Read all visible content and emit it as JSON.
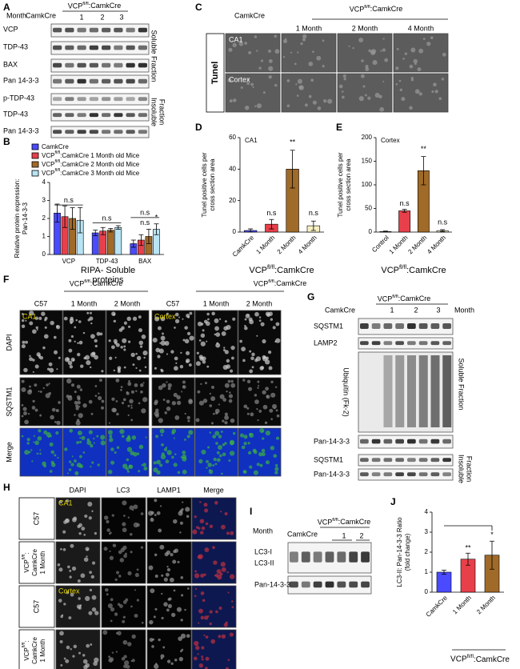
{
  "panel_labels": [
    "A",
    "B",
    "C",
    "D",
    "E",
    "F",
    "G",
    "H",
    "I",
    "J"
  ],
  "panel_a": {
    "month": "Month",
    "control": "CamkCre",
    "group": "VCPfl/fl:CamkCre",
    "months": [
      "1",
      "2",
      "3"
    ],
    "soluble_rows": [
      "VCP",
      "TDP-43",
      "BAX",
      "Pan 14-3-3"
    ],
    "insoluble_rows": [
      "p-TDP-43",
      "TDP-43",
      "Pan 14-3-3"
    ],
    "soluble": "Soluble Fraction",
    "insoluble": [
      "Insoluble",
      "Fraction"
    ]
  },
  "panel_c": {
    "control": "CamkCre",
    "group": "VCPfl/fl:CamkCre",
    "columns": [
      "1 Month",
      "2 Month",
      "4 Month"
    ],
    "rows": [
      "CA1",
      "Cortex"
    ],
    "side": "Tunel"
  },
  "panel_f": {
    "group": "VCPfl/fl:CamkCre",
    "columns": [
      "C57",
      "1 Month",
      "2 Month"
    ],
    "rows": [
      "DAPI",
      "SQSTM1",
      "Merge"
    ],
    "regions": [
      "CA1",
      "Cortex"
    ]
  },
  "panel_g": {
    "control": "CamkCre",
    "group": "VCPfl/fl:CamkCre",
    "months": [
      "1",
      "2",
      "3"
    ],
    "month": "Month",
    "rows": [
      "SQSTM1",
      "LAMP2",
      "Ubiquitin (Fk-2)",
      "Pan-14-3-3",
      "SQSTM1",
      "Pan-14-3-3"
    ],
    "soluble": "Soluble Fraction",
    "insoluble": [
      "Insoluble",
      "Fraction"
    ]
  },
  "panel_h": {
    "columns": [
      "DAPI",
      "LC3",
      "LAMP1",
      "Merge"
    ],
    "control": "C57",
    "mutant": [
      "VCPfl/fl:",
      "CamkCre",
      "1 Month"
    ],
    "regions": [
      "CA1",
      "Cortex"
    ]
  },
  "panel_i": {
    "month": "Month",
    "control": "CamkCre",
    "group": "VCPfl/fl:CamkCre",
    "months": [
      "1",
      "2"
    ],
    "rows": [
      "LC3-I",
      "LC3-II",
      "Pan-14-3-3"
    ]
  },
  "chart_data": [
    {
      "type": "bar",
      "categories": [
        "VCP",
        "TDP-43",
        "BAX"
      ],
      "series": [
        {
          "name": "CamkCre",
          "color": "#4a4aff",
          "values": [
            2.3,
            1.2,
            0.6
          ],
          "errors": [
            0.5,
            0.15,
            0.2
          ]
        },
        {
          "name": "VCPfl/fl:CamkCre 1 Month old Mice",
          "color": "#e8404a",
          "values": [
            2.1,
            1.3,
            0.8
          ],
          "errors": [
            0.6,
            0.2,
            0.3
          ]
        },
        {
          "name": "VCPfl/fl:CamkCre 2 Month old Mice",
          "color": "#a06a28",
          "values": [
            2.0,
            1.35,
            1.0
          ],
          "errors": [
            0.6,
            0.1,
            0.4
          ]
        },
        {
          "name": "VCPfl/fl:CamkCre 3 Month old Mice",
          "color": "#b8e4f4",
          "values": [
            1.9,
            1.5,
            1.4
          ],
          "errors": [
            0.7,
            0.1,
            0.3
          ]
        }
      ],
      "ylim": [
        0,
        4
      ],
      "yticks": [
        0,
        1,
        2,
        3,
        4
      ],
      "ylabel": [
        "Relative protein expression:",
        "Pan-14-3-3"
      ],
      "xlabel": [
        "RIPA- Soluble",
        "proteins"
      ],
      "annotations": [
        "n.s",
        "n.s",
        "n.s",
        "n.s",
        "*"
      ]
    },
    {
      "type": "bar",
      "inset": "CA1",
      "categories": [
        "CamkCre",
        "1 Month",
        "2 Month",
        "4 Month"
      ],
      "values": [
        1,
        5,
        40,
        4
      ],
      "errors": [
        1,
        3,
        12,
        3
      ],
      "colors": [
        "#4a4aff",
        "#e8404a",
        "#a06a28",
        "#f6f0c4"
      ],
      "ylim": [
        0,
        60
      ],
      "yticks": [
        0,
        20,
        40,
        60
      ],
      "ylabel": [
        "Tunel positive cells per",
        "cross section area"
      ],
      "xlabel": [
        "VCPfl/fl:CamkCre"
      ],
      "annotations": [
        "n.s",
        "**",
        "n.s"
      ]
    },
    {
      "type": "bar",
      "inset": "Cortex",
      "categories": [
        "Control",
        "1 Month",
        "2 Month",
        "4 Month"
      ],
      "values": [
        1,
        45,
        130,
        3
      ],
      "errors": [
        1,
        3,
        30,
        2
      ],
      "colors": [
        "#4a4aff",
        "#e8404a",
        "#a06a28",
        "#f6f0c4"
      ],
      "ylim": [
        0,
        200
      ],
      "yticks": [
        0,
        50,
        100,
        150,
        200
      ],
      "ylabel": [
        "Tunel positive cells per",
        "cross section area"
      ],
      "xlabel": [
        "VCPfl/fl:CamkCre"
      ],
      "annotations": [
        "n.s",
        "**",
        "n.s"
      ]
    },
    {
      "type": "bar",
      "categories": [
        "CamkCre",
        "1 Month",
        "2 Month"
      ],
      "values": [
        1.0,
        1.65,
        1.85
      ],
      "errors": [
        0.1,
        0.3,
        0.7
      ],
      "colors": [
        "#4a4aff",
        "#e8404a",
        "#a06a28"
      ],
      "ylim": [
        0,
        4
      ],
      "yticks": [
        0,
        1,
        2,
        3,
        4
      ],
      "ylabel": [
        "LC3-II: Pan-14-3-3 Ratio",
        "(fold change)"
      ],
      "xlabel": [
        "VCPfl/fl:CamkCre"
      ],
      "annotations": [
        "**",
        "*"
      ]
    }
  ]
}
